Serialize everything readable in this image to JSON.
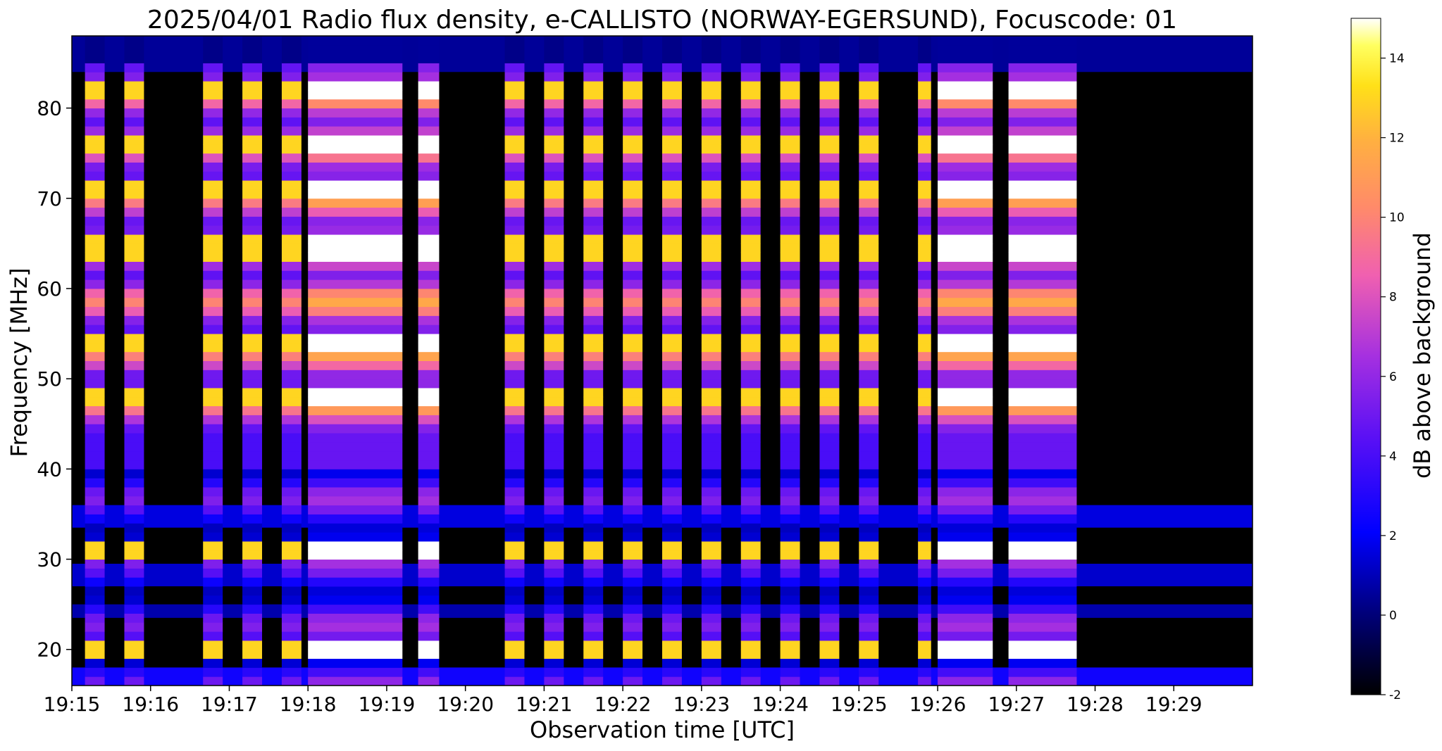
{
  "chart_data": {
    "type": "heatmap",
    "title": "2025/04/01  Radio flux density, e-CALLISTO (NORWAY-EGERSUND), Focuscode: 01",
    "xlabel": "Observation time [UTC]",
    "ylabel": "Frequency [MHz]",
    "colorbar_label": "dB above background",
    "colormap": "gnuplot2",
    "xlim": [
      "19:15:00",
      "19:30:00"
    ],
    "ylim": [
      16,
      88
    ],
    "clim": [
      -2,
      15
    ],
    "x_ticks": [
      "19:15",
      "19:16",
      "19:17",
      "19:18",
      "19:19",
      "19:20",
      "19:21",
      "19:22",
      "19:23",
      "19:24",
      "19:25",
      "19:26",
      "19:27",
      "19:28",
      "19:29"
    ],
    "y_ticks": [
      20,
      30,
      40,
      50,
      60,
      70,
      80
    ],
    "colorbar_ticks": [
      -2,
      0,
      2,
      4,
      6,
      8,
      10,
      12,
      14
    ],
    "bursts": [
      {
        "start": "19:15:10",
        "end": "19:15:25",
        "peak_db": 13
      },
      {
        "start": "19:15:40",
        "end": "19:15:55",
        "peak_db": 13
      },
      {
        "start": "19:16:40",
        "end": "19:16:55",
        "peak_db": 13
      },
      {
        "start": "19:17:10",
        "end": "19:17:25",
        "peak_db": 13
      },
      {
        "start": "19:17:40",
        "end": "19:17:55",
        "peak_db": 13
      },
      {
        "start": "19:18:00",
        "end": "19:19:12",
        "peak_db": 15
      },
      {
        "start": "19:19:24",
        "end": "19:19:40",
        "peak_db": 15
      },
      {
        "start": "19:20:30",
        "end": "19:20:45",
        "peak_db": 13
      },
      {
        "start": "19:21:00",
        "end": "19:21:15",
        "peak_db": 13
      },
      {
        "start": "19:21:30",
        "end": "19:21:45",
        "peak_db": 13
      },
      {
        "start": "19:22:00",
        "end": "19:22:15",
        "peak_db": 13
      },
      {
        "start": "19:22:30",
        "end": "19:22:45",
        "peak_db": 13
      },
      {
        "start": "19:23:00",
        "end": "19:23:15",
        "peak_db": 13
      },
      {
        "start": "19:23:30",
        "end": "19:23:45",
        "peak_db": 13
      },
      {
        "start": "19:24:00",
        "end": "19:24:15",
        "peak_db": 13
      },
      {
        "start": "19:24:30",
        "end": "19:24:45",
        "peak_db": 13
      },
      {
        "start": "19:25:00",
        "end": "19:25:15",
        "peak_db": 13
      },
      {
        "start": "19:25:45",
        "end": "19:25:55",
        "peak_db": 13
      },
      {
        "start": "19:26:00",
        "end": "19:26:42",
        "peak_db": 15
      },
      {
        "start": "19:26:54",
        "end": "19:27:46",
        "peak_db": 15
      }
    ],
    "bright_bands_mhz": [
      82,
      76,
      71,
      64.5,
      54,
      48,
      31,
      20
    ],
    "colors": {
      "background": "#ffffff",
      "axis": "#000000"
    }
  }
}
